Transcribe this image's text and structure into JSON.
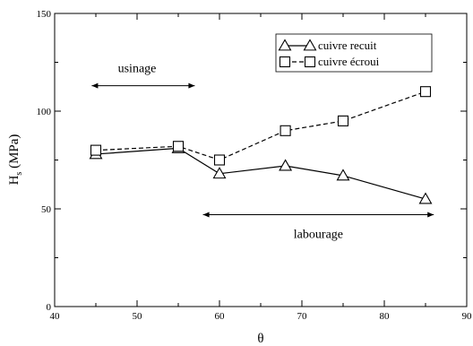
{
  "chart_data": {
    "type": "line",
    "xlabel": "θ",
    "ylabel": "H",
    "ylabel_sub": "s",
    "ylabel_unit": "(MPa)",
    "xlim": [
      40,
      90
    ],
    "ylim": [
      0,
      150
    ],
    "xticks": [
      40,
      50,
      60,
      70,
      80,
      90
    ],
    "yticks": [
      0,
      50,
      100,
      150
    ],
    "grid": false,
    "legend_position": "top-right",
    "series": [
      {
        "name": "cuivre recuit",
        "marker": "triangle",
        "line": "solid",
        "x": [
          45,
          55,
          60,
          68,
          75,
          85
        ],
        "y": [
          78,
          81,
          68,
          72,
          67,
          55
        ]
      },
      {
        "name": "cuivre écroui",
        "marker": "square",
        "line": "dashed",
        "x": [
          45,
          55,
          60,
          68,
          75,
          85
        ],
        "y": [
          80,
          82,
          75,
          90,
          95,
          110
        ]
      }
    ],
    "annotations": [
      {
        "text": "usinage",
        "x": 50,
        "y": 120,
        "arrow_from": 44.5,
        "arrow_to": 57,
        "arrow_y": 113
      },
      {
        "text": "labourage",
        "x": 72,
        "y": 35,
        "arrow_from": 58,
        "arrow_to": 86,
        "arrow_y": 47
      }
    ]
  }
}
